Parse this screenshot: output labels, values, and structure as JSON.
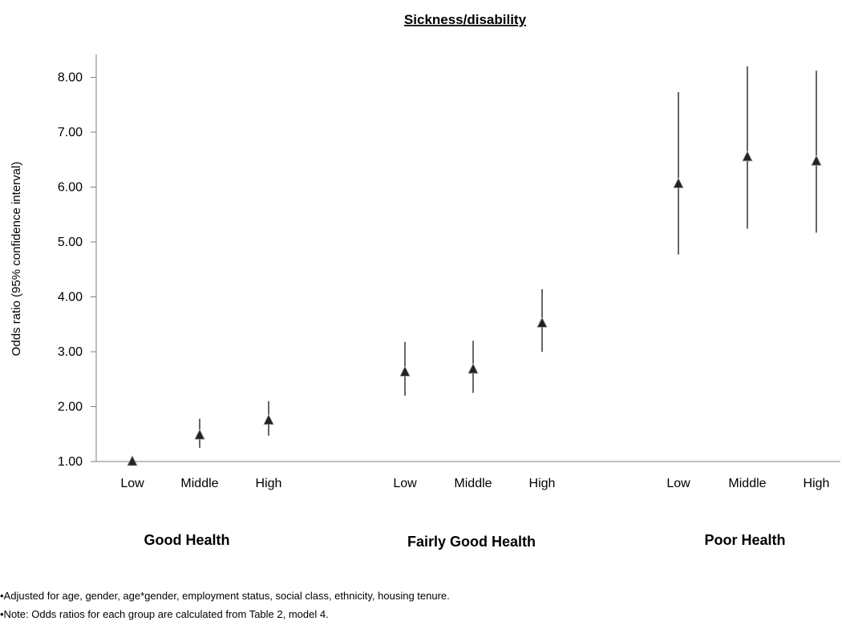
{
  "chart_data": {
    "type": "scatter",
    "title": "Sickness/disability",
    "ylabel": "Odds ratio (95% confidence interval)",
    "xlabel": "",
    "ylim": [
      1.0,
      8.2
    ],
    "yticks": [
      "1.00",
      "2.00",
      "3.00",
      "4.00",
      "5.00",
      "6.00",
      "7.00",
      "8.00"
    ],
    "grid": false,
    "marker": "triangle",
    "groups": [
      {
        "label": "Good Health",
        "points": [
          {
            "category": "Low",
            "value": 1.0,
            "lower": 1.0,
            "upper": 1.0
          },
          {
            "category": "Middle",
            "value": 1.48,
            "lower": 1.25,
            "upper": 1.78
          },
          {
            "category": "High",
            "value": 1.75,
            "lower": 1.47,
            "upper": 2.1
          }
        ]
      },
      {
        "label": "Fairly Good Health",
        "points": [
          {
            "category": "Low",
            "value": 2.63,
            "lower": 2.2,
            "upper": 3.18
          },
          {
            "category": "Middle",
            "value": 2.68,
            "lower": 2.25,
            "upper": 3.2
          },
          {
            "category": "High",
            "value": 3.52,
            "lower": 3.0,
            "upper": 4.14
          }
        ]
      },
      {
        "label": "Poor Health",
        "points": [
          {
            "category": "Low",
            "value": 6.06,
            "lower": 4.77,
            "upper": 7.73
          },
          {
            "category": "Middle",
            "value": 6.55,
            "lower": 5.24,
            "upper": 8.2
          },
          {
            "category": "High",
            "value": 6.47,
            "lower": 5.17,
            "upper": 8.12
          }
        ]
      }
    ]
  },
  "notes": [
    "•Adjusted for age, gender, age*gender, employment status, social class, ethnicity, housing tenure.",
    "•Note: Odds ratios for each group are calculated from Table 2, model 4."
  ]
}
